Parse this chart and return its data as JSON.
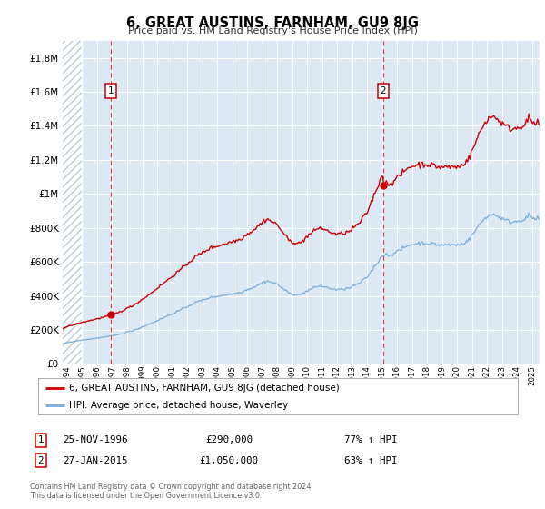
{
  "title": "6, GREAT AUSTINS, FARNHAM, GU9 8JG",
  "subtitle": "Price paid vs. HM Land Registry's House Price Index (HPI)",
  "legend_label1": "6, GREAT AUSTINS, FARNHAM, GU9 8JG (detached house)",
  "legend_label2": "HPI: Average price, detached house, Waverley",
  "annotation1_date": "25-NOV-1996",
  "annotation1_price": "£290,000",
  "annotation1_hpi": "77% ↑ HPI",
  "annotation2_date": "27-JAN-2015",
  "annotation2_price": "£1,050,000",
  "annotation2_hpi": "63% ↑ HPI",
  "footer1": "Contains HM Land Registry data © Crown copyright and database right 2024.",
  "footer2": "This data is licensed under the Open Government Licence v3.0.",
  "sale1_date_num": 1996.9,
  "sale1_value": 290000,
  "sale2_date_num": 2015.07,
  "sale2_value": 1050000,
  "red_color": "#cc0000",
  "blue_color": "#7aaddb",
  "vline_color": "#dd4444",
  "bg_color": "#dce9f5",
  "hatch_bg": "#ffffff",
  "hatch_fg": "#bbccdd",
  "ylim_max": 1900000,
  "ylim_min": 0,
  "xlim_min": 1993.7,
  "xlim_max": 2025.5,
  "hatch_end": 1995.0,
  "yticks": [
    0,
    200000,
    400000,
    600000,
    800000,
    1000000,
    1200000,
    1400000,
    1600000,
    1800000
  ],
  "xticks_start": 1994,
  "xticks_end": 2025,
  "seed": 42,
  "hpi_anchors": {
    "1993.7": 120000,
    "1994.0": 125000,
    "1995.0": 140000,
    "1996.0": 152000,
    "1996.9": 163700,
    "1997.5": 175000,
    "1998.5": 200000,
    "1999.5": 235000,
    "2000.5": 275000,
    "2001.5": 315000,
    "2002.5": 360000,
    "2003.5": 390000,
    "2004.5": 405000,
    "2005.5": 420000,
    "2006.5": 455000,
    "2007.3": 490000,
    "2008.0": 470000,
    "2008.8": 415000,
    "2009.5": 405000,
    "2010.0": 430000,
    "2010.8": 460000,
    "2011.5": 445000,
    "2012.0": 435000,
    "2012.8": 445000,
    "2013.5": 475000,
    "2014.0": 510000,
    "2015.07": 643600,
    "2015.5": 640000,
    "2016.0": 660000,
    "2016.8": 700000,
    "2017.5": 710000,
    "2018.0": 710000,
    "2018.8": 700000,
    "2019.5": 700000,
    "2020.2": 700000,
    "2020.8": 730000,
    "2021.5": 820000,
    "2022.0": 870000,
    "2022.5": 880000,
    "2022.9": 860000,
    "2023.3": 840000,
    "2023.8": 835000,
    "2024.3": 845000,
    "2024.8": 870000,
    "2025.2": 850000
  }
}
